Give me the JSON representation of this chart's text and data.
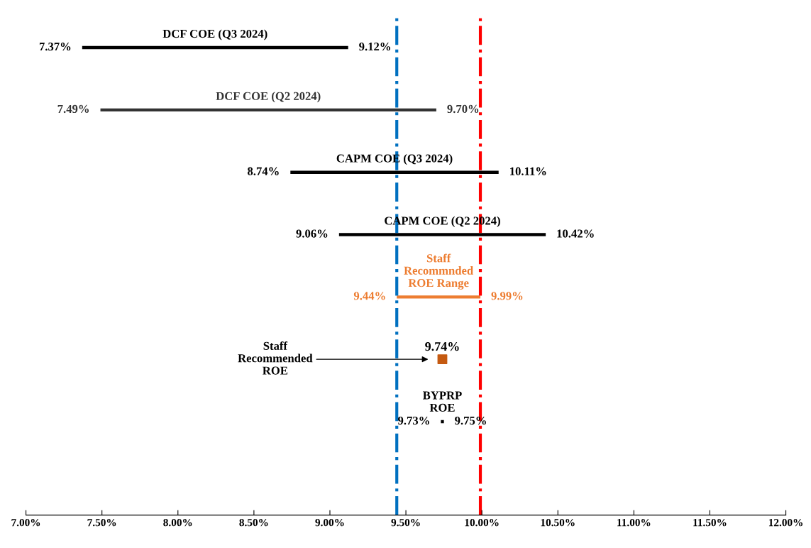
{
  "chart_data": {
    "type": "bar",
    "orientation": "horizontal",
    "categories": [
      null,
      null,
      null,
      null,
      null,
      null,
      null,
      null
    ],
    "series": [
      {
        "colors": [
          "#000000",
          "#333333",
          "#000000",
          "#000000",
          "#ed7d31",
          "#000000",
          "#000000",
          "#000000"
        ],
        "base": [
          7.37,
          7.49,
          8.74,
          9.06,
          9.44,
          null,
          9.73,
          null
        ],
        "values": [
          1.75,
          2.21,
          1.37,
          1.36,
          0.55,
          null,
          0.02,
          null
        ]
      },
      {
        "type": "scatter",
        "color": "#c55a11",
        "marker": "square",
        "values": [
          null,
          null,
          null,
          null,
          null,
          9.74,
          null,
          null
        ]
      }
    ],
    "annotations": [
      "DCF COE (Q3 2024)",
      "DCF COE (Q2 2024)",
      "CAPM COE (Q3 2024)",
      "CAPM COE (Q2 2024)",
      "Staff\nRecommnded\nROE Range",
      "Staff\nRecommended\nROE",
      "BYPRP\nROE",
      {
        "text": "7.37%",
        "x": 7.37
      },
      {
        "text": "9.12%",
        "x": 9.12
      },
      {
        "text": "7.49%",
        "x": 7.49
      },
      {
        "text": "9.70%",
        "x": 9.7
      },
      {
        "text": "8.74%",
        "x": 8.74
      },
      {
        "text": "10.11%",
        "x": 10.11
      },
      {
        "text": "9.06%",
        "x": 9.06
      },
      {
        "text": "10.42%",
        "x": 10.42
      },
      {
        "text": "9.44%",
        "x": 9.44
      },
      {
        "text": "9.99%",
        "x": 9.99
      },
      "9.74%",
      {
        "text": "9.73%",
        "x": 9.73
      },
      {
        "text": "9.75%",
        "x": 9.75
      }
    ],
    "ref_lines": [
      {
        "axis": "x",
        "value": 9.44,
        "color": "#0070c0",
        "line_style": "dashdot"
      },
      {
        "axis": "x",
        "value": 9.99,
        "color": "#ff0000",
        "line_style": "dashdot"
      }
    ],
    "xlim": [
      7.0,
      12.0
    ],
    "xticks": [
      {
        "value": 7.0,
        "label": "7.00%"
      },
      {
        "value": 7.5,
        "label": "7.50%"
      },
      {
        "value": 8.0,
        "label": "8.00%"
      },
      {
        "value": 8.5,
        "label": "8.50%"
      },
      {
        "value": 9.0,
        "label": "9.00%"
      },
      {
        "value": 9.5,
        "label": "9.50%"
      },
      {
        "value": 10.0,
        "label": "10.00%"
      },
      {
        "value": 10.5,
        "label": "10.50%"
      },
      {
        "value": 11.0,
        "label": "11.00%"
      },
      {
        "value": 11.5,
        "label": "11.50%"
      },
      {
        "value": 12.0,
        "label": "12.00%"
      }
    ],
    "tick_labels": "x",
    "grid": false,
    "legend": false
  }
}
